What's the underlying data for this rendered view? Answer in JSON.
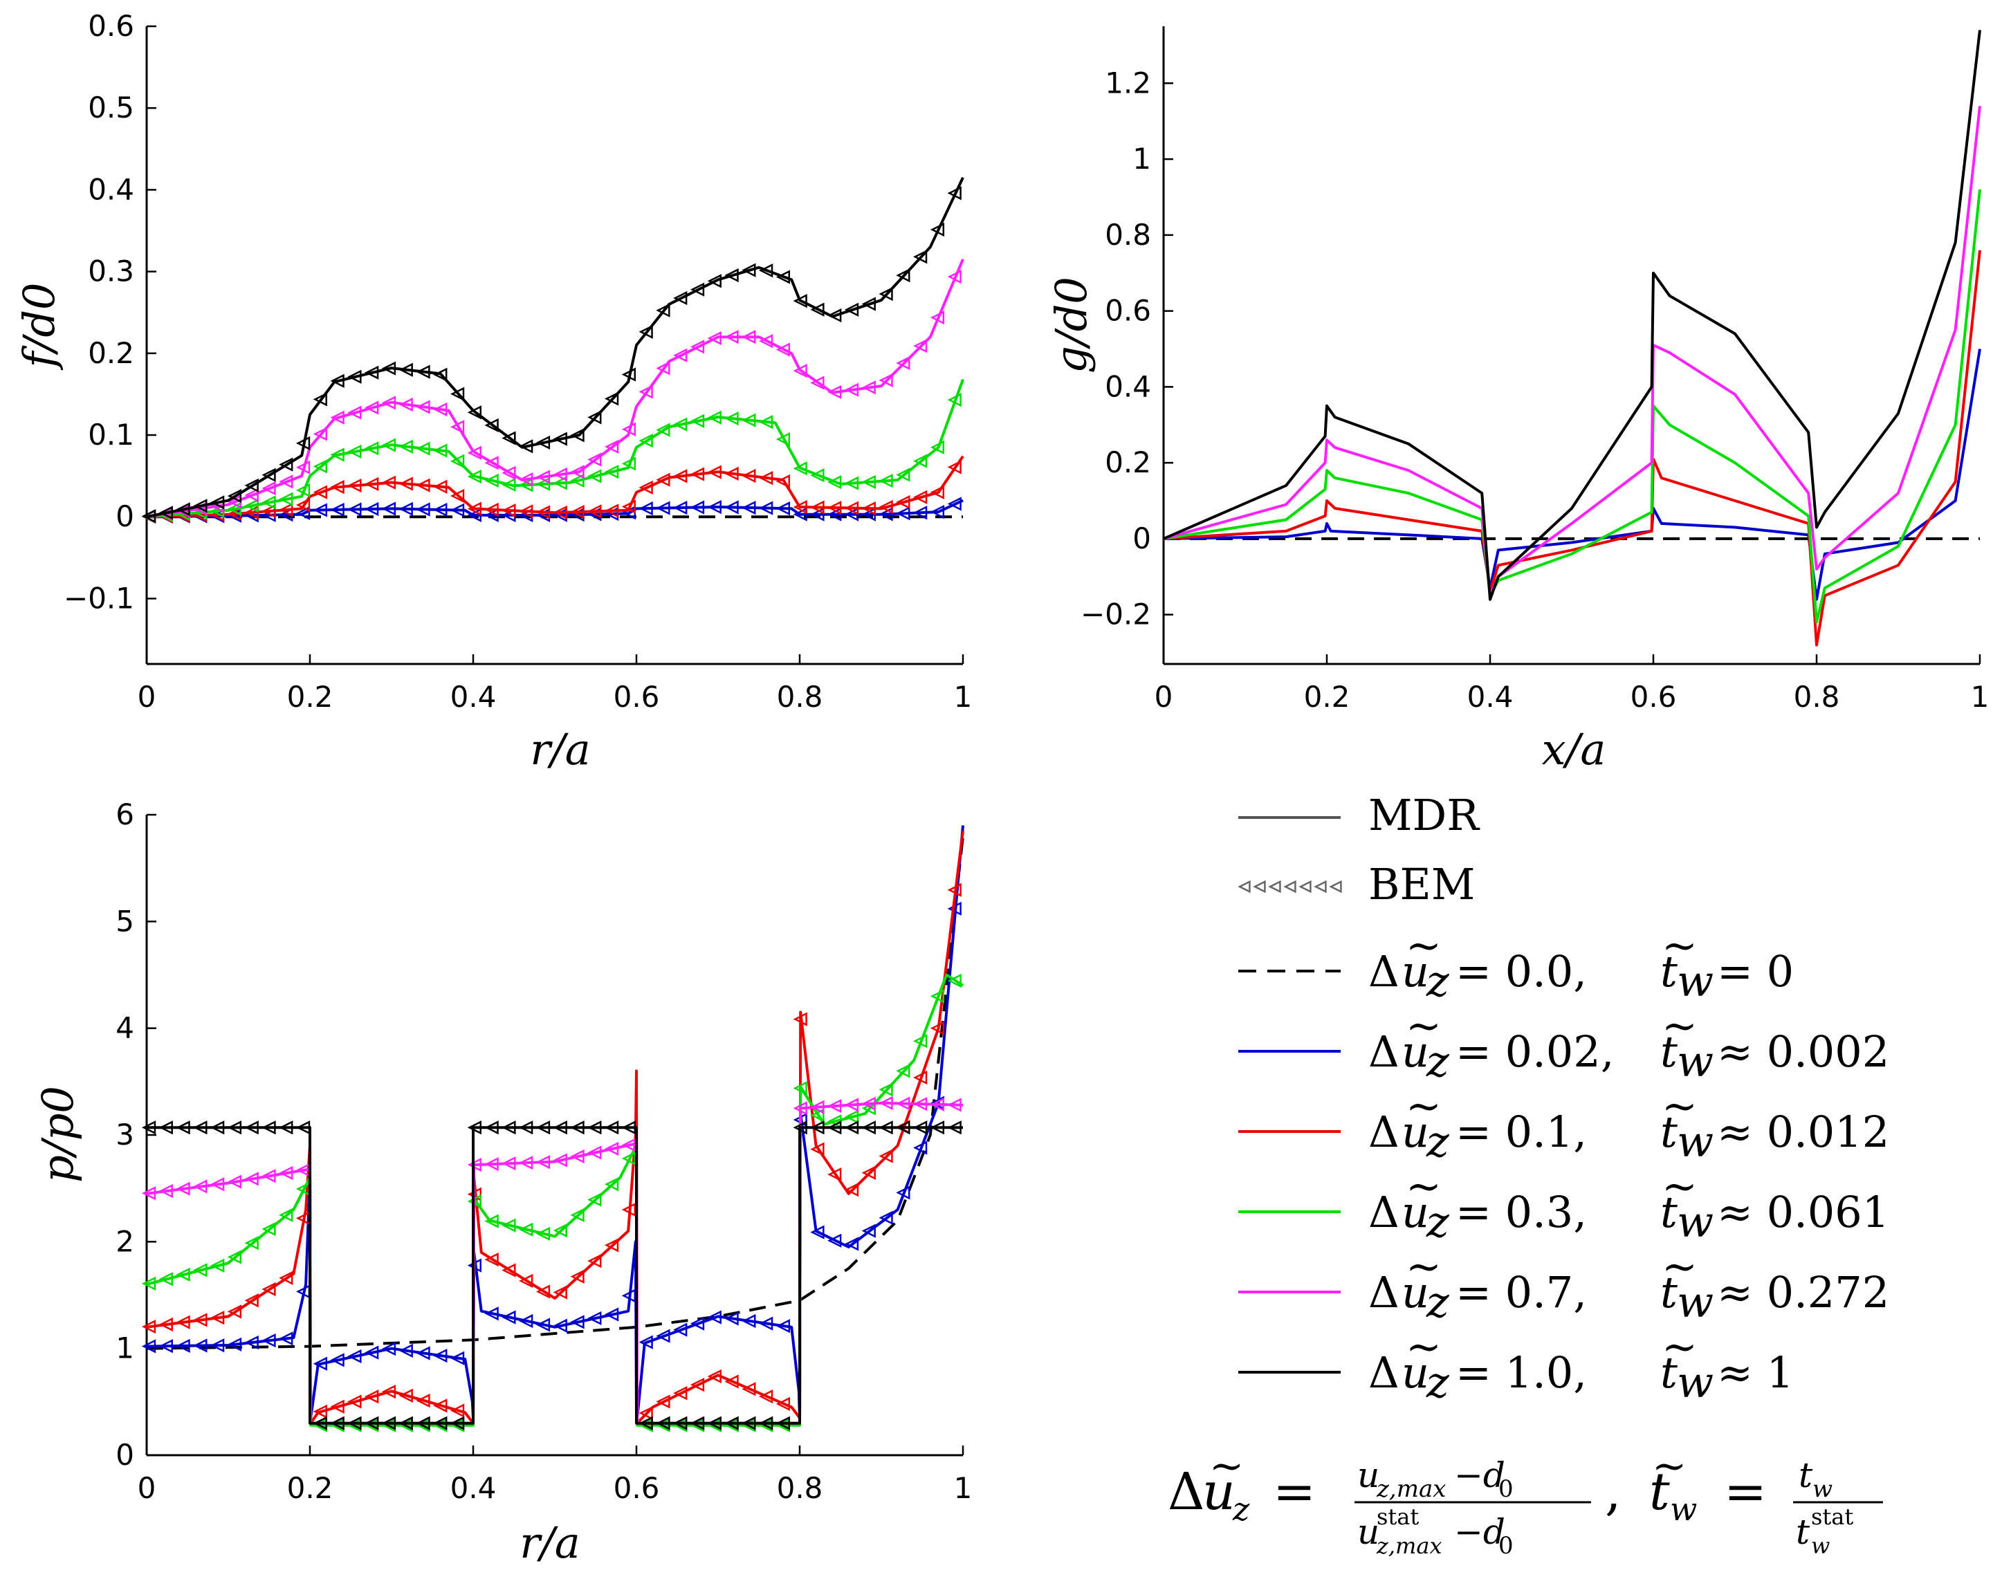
{
  "chart_data": [
    {
      "id": "f",
      "type": "line",
      "xlabel": "r/a",
      "ylabel": "f/d0",
      "xlim": [
        0,
        1
      ],
      "ylim": [
        -0.18,
        0.6
      ],
      "xticks": [
        0,
        0.2,
        0.4,
        0.6,
        0.8,
        1
      ],
      "xtick_labels": [
        "0",
        "0.2",
        "0.4",
        "0.6",
        "0.8",
        "1"
      ],
      "yticks": [
        -0.1,
        0,
        0.1,
        0.2,
        0.3,
        0.4,
        0.5,
        0.6
      ],
      "ytick_labels": [
        "−0.1",
        "0",
        "0.1",
        "0.2",
        "0.3",
        "0.4",
        "0.5",
        "0.6"
      ],
      "series": [
        {
          "name": "Δũz = 0.0",
          "color": "#000000",
          "dashed": true,
          "x": [
            0,
            0.2,
            0.4,
            0.6,
            0.8,
            1
          ],
          "y": [
            0,
            0,
            0,
            0,
            0,
            0
          ]
        },
        {
          "name": "Δũz = 0.02",
          "color": "#0000cc",
          "x": [
            0,
            0.1,
            0.19,
            0.2,
            0.3,
            0.39,
            0.4,
            0.5,
            0.59,
            0.6,
            0.7,
            0.79,
            0.8,
            0.9,
            0.97,
            1
          ],
          "y": [
            0,
            0.001,
            0.003,
            0.008,
            0.01,
            0.008,
            0.002,
            0.002,
            0.004,
            0.01,
            0.012,
            0.01,
            0.003,
            0.003,
            0.006,
            0.02
          ]
        },
        {
          "name": "Δũz = 0.1",
          "color": "#ee0000",
          "x": [
            0,
            0.1,
            0.19,
            0.2,
            0.23,
            0.3,
            0.37,
            0.4,
            0.5,
            0.59,
            0.6,
            0.64,
            0.7,
            0.78,
            0.8,
            0.9,
            0.97,
            1
          ],
          "y": [
            0,
            0.003,
            0.01,
            0.025,
            0.036,
            0.042,
            0.036,
            0.01,
            0.005,
            0.008,
            0.03,
            0.048,
            0.055,
            0.045,
            0.012,
            0.01,
            0.03,
            0.074
          ]
        },
        {
          "name": "Δũz = 0.3",
          "color": "#00dd00",
          "x": [
            0,
            0.1,
            0.19,
            0.2,
            0.23,
            0.3,
            0.37,
            0.4,
            0.45,
            0.52,
            0.59,
            0.6,
            0.64,
            0.7,
            0.77,
            0.8,
            0.85,
            0.92,
            0.97,
            1
          ],
          "y": [
            0,
            0.008,
            0.025,
            0.05,
            0.075,
            0.088,
            0.08,
            0.05,
            0.038,
            0.042,
            0.06,
            0.085,
            0.11,
            0.122,
            0.115,
            0.06,
            0.04,
            0.045,
            0.085,
            0.168
          ]
        },
        {
          "name": "Δũz = 0.7",
          "color": "#ff22ff",
          "x": [
            0,
            0.1,
            0.19,
            0.2,
            0.23,
            0.3,
            0.37,
            0.4,
            0.46,
            0.53,
            0.59,
            0.6,
            0.64,
            0.7,
            0.75,
            0.79,
            0.8,
            0.84,
            0.9,
            0.96,
            1
          ],
          "y": [
            0,
            0.015,
            0.05,
            0.085,
            0.12,
            0.14,
            0.13,
            0.08,
            0.045,
            0.055,
            0.1,
            0.135,
            0.19,
            0.22,
            0.22,
            0.2,
            0.18,
            0.152,
            0.16,
            0.22,
            0.315
          ]
        },
        {
          "name": "Δũz = 1.0",
          "color": "#000000",
          "x": [
            0,
            0.1,
            0.19,
            0.2,
            0.23,
            0.3,
            0.36,
            0.4,
            0.46,
            0.53,
            0.59,
            0.6,
            0.64,
            0.7,
            0.75,
            0.79,
            0.8,
            0.84,
            0.9,
            0.96,
            1
          ],
          "y": [
            0,
            0.02,
            0.075,
            0.125,
            0.165,
            0.182,
            0.175,
            0.13,
            0.085,
            0.1,
            0.165,
            0.21,
            0.26,
            0.29,
            0.305,
            0.29,
            0.265,
            0.245,
            0.265,
            0.33,
            0.415
          ]
        }
      ],
      "markers": "left-pointing open triangles (BEM) overlaid along each solid curve"
    },
    {
      "id": "g",
      "type": "line",
      "xlabel": "x/a",
      "ylabel": "g/d0",
      "xlim": [
        0,
        1
      ],
      "ylim": [
        -0.33,
        1.35
      ],
      "xticks": [
        0,
        0.2,
        0.4,
        0.6,
        0.8,
        1
      ],
      "xtick_labels": [
        "0",
        "0.2",
        "0.4",
        "0.6",
        "0.8",
        "1"
      ],
      "yticks": [
        -0.2,
        0,
        0.2,
        0.4,
        0.6,
        0.8,
        1,
        1.2
      ],
      "ytick_labels": [
        "−0.2",
        "0",
        "0.2",
        "0.4",
        "0.6",
        "0.8",
        "1",
        "1.2"
      ],
      "series": [
        {
          "name": "Δũz = 0.0",
          "color": "#000000",
          "dashed": true,
          "x": [
            0,
            0.2,
            0.4,
            0.6,
            0.8,
            1
          ],
          "y": [
            0,
            0,
            0,
            0,
            0,
            0
          ]
        },
        {
          "name": "Δũz = 0.02",
          "color": "#0000cc",
          "x": [
            0,
            0.15,
            0.198,
            0.2,
            0.205,
            0.3,
            0.39,
            0.4,
            0.41,
            0.5,
            0.598,
            0.6,
            0.61,
            0.7,
            0.79,
            0.8,
            0.81,
            0.9,
            0.97,
            1
          ],
          "y": [
            0,
            0.005,
            0.02,
            0.04,
            0.02,
            0.01,
            0.0,
            -0.13,
            -0.03,
            -0.01,
            0.02,
            0.08,
            0.04,
            0.03,
            0.01,
            -0.16,
            -0.04,
            -0.01,
            0.1,
            0.5
          ]
        },
        {
          "name": "Δũz = 0.1",
          "color": "#ee0000",
          "x": [
            0,
            0.15,
            0.198,
            0.2,
            0.21,
            0.3,
            0.39,
            0.4,
            0.41,
            0.5,
            0.598,
            0.6,
            0.61,
            0.7,
            0.79,
            0.8,
            0.81,
            0.9,
            0.97,
            1
          ],
          "y": [
            0,
            0.02,
            0.06,
            0.1,
            0.08,
            0.05,
            0.02,
            -0.14,
            -0.07,
            -0.03,
            0.02,
            0.21,
            0.16,
            0.1,
            0.04,
            -0.28,
            -0.15,
            -0.07,
            0.15,
            0.76
          ]
        },
        {
          "name": "Δũz = 0.3",
          "color": "#00dd00",
          "x": [
            0,
            0.15,
            0.198,
            0.2,
            0.21,
            0.3,
            0.39,
            0.4,
            0.41,
            0.5,
            0.598,
            0.6,
            0.62,
            0.7,
            0.79,
            0.8,
            0.81,
            0.9,
            0.97,
            1
          ],
          "y": [
            0,
            0.05,
            0.13,
            0.18,
            0.16,
            0.12,
            0.05,
            -0.15,
            -0.11,
            -0.04,
            0.07,
            0.35,
            0.3,
            0.2,
            0.06,
            -0.22,
            -0.13,
            -0.02,
            0.3,
            0.92
          ]
        },
        {
          "name": "Δũz = 0.7",
          "color": "#ff22ff",
          "x": [
            0,
            0.15,
            0.198,
            0.2,
            0.21,
            0.3,
            0.39,
            0.4,
            0.41,
            0.5,
            0.598,
            0.6,
            0.62,
            0.7,
            0.79,
            0.8,
            0.81,
            0.9,
            0.97,
            1
          ],
          "y": [
            0,
            0.09,
            0.2,
            0.26,
            0.24,
            0.18,
            0.08,
            -0.15,
            -0.1,
            0.04,
            0.2,
            0.51,
            0.49,
            0.38,
            0.12,
            -0.08,
            -0.05,
            0.12,
            0.55,
            1.14
          ]
        },
        {
          "name": "Δũz = 1.0",
          "color": "#000000",
          "x": [
            0,
            0.15,
            0.198,
            0.2,
            0.21,
            0.3,
            0.39,
            0.4,
            0.41,
            0.5,
            0.598,
            0.6,
            0.62,
            0.7,
            0.79,
            0.8,
            0.81,
            0.9,
            0.97,
            1
          ],
          "y": [
            0,
            0.14,
            0.27,
            0.35,
            0.32,
            0.25,
            0.12,
            -0.16,
            -0.1,
            0.08,
            0.4,
            0.7,
            0.64,
            0.54,
            0.28,
            0.03,
            0.07,
            0.33,
            0.78,
            1.34
          ]
        }
      ]
    },
    {
      "id": "p",
      "type": "line",
      "xlabel": "r/a",
      "ylabel": "p/p0",
      "xlim": [
        0,
        1
      ],
      "ylim": [
        0,
        6
      ],
      "xticks": [
        0,
        0.2,
        0.4,
        0.6,
        0.8,
        1
      ],
      "xtick_labels": [
        "0",
        "0.2",
        "0.4",
        "0.6",
        "0.8",
        "1"
      ],
      "yticks": [
        0,
        1,
        2,
        3,
        4,
        5,
        6
      ],
      "ytick_labels": [
        "0",
        "1",
        "2",
        "3",
        "4",
        "5",
        "6"
      ],
      "series": [
        {
          "name": "Δũz = 0.0",
          "color": "#000000",
          "dashed": true,
          "x": [
            0,
            0.2,
            0.4,
            0.6,
            0.7,
            0.8,
            0.86,
            0.92,
            0.96,
            1
          ],
          "y": [
            1.0,
            1.02,
            1.08,
            1.2,
            1.3,
            1.45,
            1.75,
            2.2,
            3.0,
            5.8
          ]
        },
        {
          "name": "Δũz = 0.02",
          "color": "#0000cc",
          "x": [
            0,
            0.1,
            0.18,
            0.195,
            0.2,
            0.201,
            0.21,
            0.3,
            0.39,
            0.399,
            0.4,
            0.401,
            0.41,
            0.5,
            0.59,
            0.599,
            0.6,
            0.601,
            0.61,
            0.7,
            0.79,
            0.799,
            0.8,
            0.801,
            0.82,
            0.86,
            0.92,
            0.97,
            1
          ],
          "y": [
            1.02,
            1.03,
            1.1,
            1.6,
            2.6,
            0.35,
            0.85,
            1.0,
            0.9,
            0.5,
            0.35,
            1.9,
            1.35,
            1.2,
            1.35,
            2.0,
            0.35,
            0.35,
            1.05,
            1.3,
            1.2,
            0.6,
            0.35,
            3.2,
            2.1,
            1.95,
            2.3,
            3.3,
            5.9
          ]
        },
        {
          "name": "Δũz = 0.1",
          "color": "#ee0000",
          "x": [
            0,
            0.1,
            0.18,
            0.195,
            0.2,
            0.201,
            0.21,
            0.3,
            0.39,
            0.4,
            0.401,
            0.41,
            0.5,
            0.59,
            0.599,
            0.6,
            0.601,
            0.62,
            0.7,
            0.79,
            0.8,
            0.801,
            0.82,
            0.86,
            0.92,
            0.97,
            1
          ],
          "y": [
            1.2,
            1.3,
            1.7,
            2.3,
            2.9,
            0.3,
            0.4,
            0.6,
            0.4,
            0.3,
            2.6,
            1.9,
            1.47,
            2.1,
            3.0,
            3.6,
            0.3,
            0.45,
            0.75,
            0.45,
            0.35,
            4.15,
            2.9,
            2.45,
            2.9,
            4.0,
            5.85
          ]
        },
        {
          "name": "Δũz = 0.3",
          "color": "#00dd00",
          "x": [
            0,
            0.1,
            0.18,
            0.2,
            0.201,
            0.4,
            0.401,
            0.42,
            0.5,
            0.58,
            0.6,
            0.601,
            0.8,
            0.801,
            0.83,
            0.88,
            0.94,
            0.98,
            1
          ],
          "y": [
            1.6,
            1.8,
            2.3,
            2.6,
            0.28,
            0.28,
            2.4,
            2.2,
            2.05,
            2.6,
            2.9,
            0.28,
            0.28,
            3.45,
            3.1,
            3.2,
            3.7,
            4.5,
            4.4
          ]
        },
        {
          "name": "Δũz = 0.7",
          "color": "#ff22ff",
          "x": [
            0,
            0.1,
            0.2,
            0.201,
            0.4,
            0.401,
            0.5,
            0.6,
            0.601,
            0.8,
            0.801,
            0.9,
            1
          ],
          "y": [
            2.45,
            2.55,
            2.68,
            0.3,
            0.3,
            2.72,
            2.75,
            2.92,
            0.3,
            0.3,
            3.25,
            3.3,
            3.28
          ]
        },
        {
          "name": "Δũz = 1.0",
          "color": "#000000",
          "x": [
            0,
            0.2,
            0.2,
            0.4,
            0.4,
            0.6,
            0.6,
            0.8,
            0.8,
            1
          ],
          "y": [
            3.07,
            3.07,
            0.3,
            0.3,
            3.07,
            3.07,
            0.3,
            0.3,
            3.07,
            3.07
          ]
        }
      ]
    }
  ],
  "legend": {
    "mdr_label": "MDR",
    "bem_label": "BEM",
    "entries": [
      {
        "du": "= 0.0,",
        "tw": "= 0",
        "color": "#000000",
        "dashed": true
      },
      {
        "du": "= 0.02,",
        "tw": "≈ 0.002",
        "color": "#0000cc",
        "dashed": false
      },
      {
        "du": "= 0.1,",
        "tw": "≈ 0.012",
        "color": "#ee0000",
        "dashed": false
      },
      {
        "du": "= 0.3,",
        "tw": "≈ 0.061",
        "color": "#00dd00",
        "dashed": false
      },
      {
        "du": "= 0.7,",
        "tw": "≈ 0.272",
        "color": "#ff22ff",
        "dashed": false
      },
      {
        "du": "= 1.0,",
        "tw": "≈ 1",
        "color": "#000000",
        "dashed": false
      }
    ]
  },
  "formula": {
    "equals": "=",
    "num1": "u",
    "num1_sub": "z,max",
    "num1_minus": "−d",
    "num1_minus_sub": "0",
    "den1": "u",
    "den1_sup": "stat",
    "den1_sub": "z,max",
    "den1_minus": "−d",
    "den1_minus_sub": "0",
    "sep": ",",
    "num2": "t",
    "num2_sub": "w",
    "den2": "t",
    "den2_sup": "stat",
    "den2_sub": "w"
  }
}
